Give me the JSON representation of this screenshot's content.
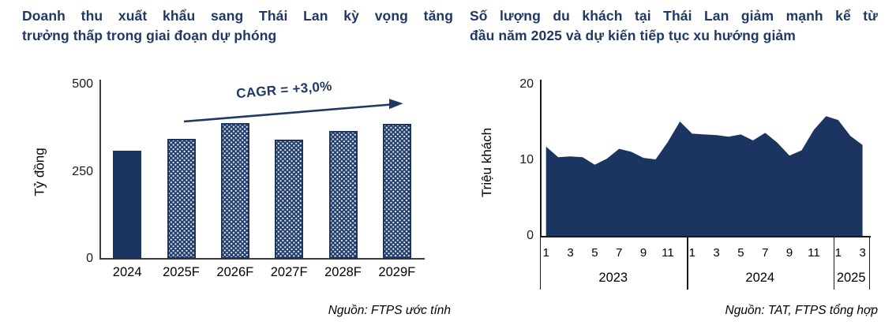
{
  "chart_data": [
    {
      "type": "bar",
      "title": "Doanh thu xuất khẩu sang Thái Lan kỳ vọng tăng trưởng thấp trong giai đoạn dự phóng",
      "title_lines": [
        "Doanh thu xuất khẩu sang Thái Lan kỳ vọng tăng",
        "trưởng thấp trong giai đoạn dự phóng"
      ],
      "ylabel": "Tỷ đồng",
      "yticks": [
        0,
        250,
        500
      ],
      "ylim": [
        0,
        500
      ],
      "categories": [
        "2024",
        "2025F",
        "2026F",
        "2027F",
        "2028F",
        "2029F"
      ],
      "values": [
        310,
        343,
        390,
        342,
        367,
        386
      ],
      "bar_styles": [
        "solid",
        "pattern",
        "pattern",
        "pattern",
        "pattern",
        "pattern"
      ],
      "annotation": "CAGR = +3,0%",
      "legend": "none",
      "grid": false,
      "source": "Nguồn: FTPS ước tính",
      "accent_color": "#1b3560"
    },
    {
      "type": "area",
      "title": "Số lượng du khách tại Thái Lan giảm mạnh kể từ đầu năm 2025 và dự kiến tiếp tục xu hướng giảm",
      "title_lines": [
        "Số lượng du khách tại Thái Lan giảm mạnh kể từ",
        "đầu năm 2025 và dự kiến tiếp tục xu hướng giảm"
      ],
      "ylabel": "Triệu khách",
      "yticks": [
        0,
        10,
        20
      ],
      "ylim": [
        0,
        20
      ],
      "x_unit": "month",
      "x_groups": [
        {
          "year": "2023",
          "tick_labels": [
            "1",
            "3",
            "5",
            "7",
            "9",
            "11"
          ],
          "months": 12
        },
        {
          "year": "2024",
          "tick_labels": [
            "1",
            "3",
            "5",
            "7",
            "9",
            "11"
          ],
          "months": 12
        },
        {
          "year": "2025",
          "tick_labels": [
            "1",
            "3"
          ],
          "months": 3
        }
      ],
      "x_months": [
        "2023-01",
        "2023-02",
        "2023-03",
        "2023-04",
        "2023-05",
        "2023-06",
        "2023-07",
        "2023-08",
        "2023-09",
        "2023-10",
        "2023-11",
        "2023-12",
        "2024-01",
        "2024-02",
        "2024-03",
        "2024-04",
        "2024-05",
        "2024-06",
        "2024-07",
        "2024-08",
        "2024-09",
        "2024-10",
        "2024-11",
        "2024-12",
        "2025-01",
        "2025-02",
        "2025-03"
      ],
      "values": [
        11.8,
        10.4,
        10.5,
        10.4,
        9.4,
        10.2,
        11.5,
        11.1,
        10.3,
        10.1,
        12.4,
        15.1,
        13.5,
        13.4,
        13.3,
        13.1,
        13.4,
        12.6,
        13.6,
        12.3,
        10.6,
        11.3,
        14.0,
        15.8,
        15.3,
        13.2,
        12.0
      ],
      "legend": "none",
      "grid": false,
      "source": "Nguồn: TAT, FTPS tổng hợp",
      "accent_color": "#1b3560"
    }
  ],
  "colors": {
    "title_navy": "#1f3864",
    "fill_navy": "#1b3560",
    "axis": "#3f3f3f",
    "text": "#000000"
  }
}
